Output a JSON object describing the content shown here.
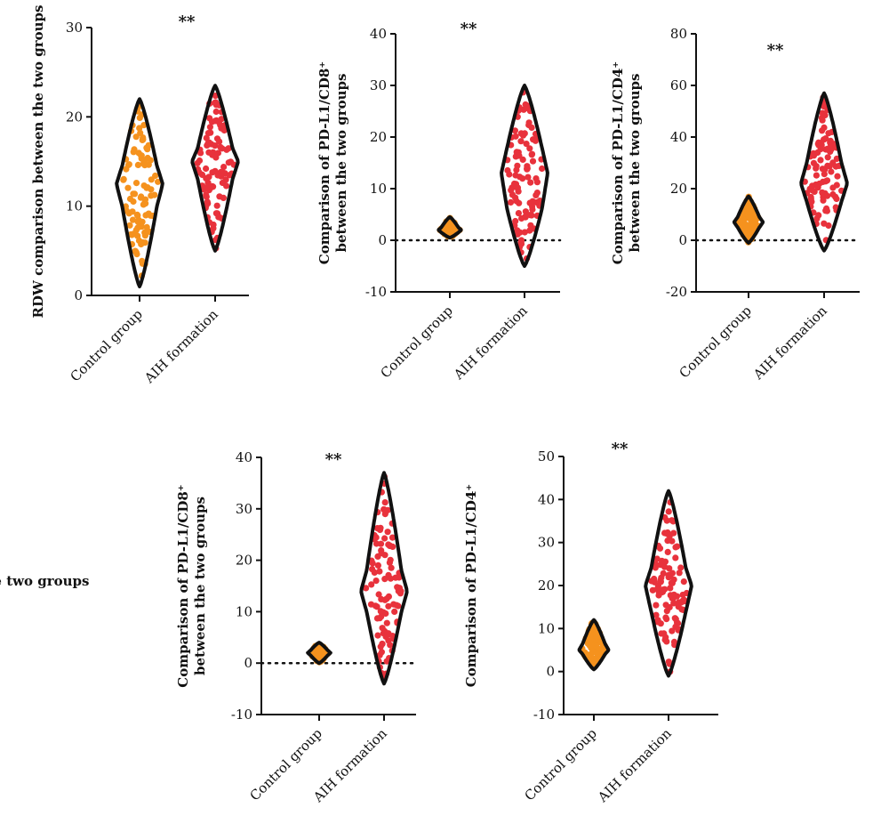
{
  "colors": {
    "control": "#F5921E",
    "aih": "#E8323C",
    "outline": "#111111",
    "axis": "#111111"
  },
  "chart_data": [
    {
      "type": "violin",
      "ylabel": [
        "RDW comparison between the two groups"
      ],
      "categories": [
        "Control group",
        "AIH formation"
      ],
      "ylim": [
        0,
        30
      ],
      "yticks": [
        0,
        10,
        20,
        30
      ],
      "zero_line": false,
      "significance": "**",
      "series": [
        {
          "category": "Control group",
          "min": 1,
          "max": 22,
          "median": 12.5,
          "q1": 10,
          "q3": 14.5,
          "n": 100
        },
        {
          "category": "AIH formation",
          "min": 5,
          "max": 23.5,
          "median": 15,
          "q1": 13,
          "q3": 16.5,
          "n": 100
        }
      ]
    },
    {
      "type": "violin",
      "ylabel": [
        "Comparison of PD-L1/CD8⁺",
        "between the two groups"
      ],
      "categories": [
        "Control group",
        "AIH formation"
      ],
      "ylim": [
        -10,
        40
      ],
      "yticks": [
        -10,
        0,
        10,
        20,
        30,
        40
      ],
      "zero_line": true,
      "significance": "**",
      "series": [
        {
          "category": "Control group",
          "min": 0.5,
          "max": 4.5,
          "median": 2,
          "q1": 1.5,
          "q3": 2.5,
          "n": 100
        },
        {
          "category": "AIH formation",
          "min": -5,
          "max": 30,
          "median": 13,
          "q1": 6,
          "q3": 18,
          "n": 100
        }
      ]
    },
    {
      "type": "violin",
      "ylabel": [
        "Comparison of PD-L1/CD4⁺",
        "between the two groups"
      ],
      "categories": [
        "Control group",
        "AIH formation"
      ],
      "ylim": [
        -20,
        80
      ],
      "yticks": [
        -20,
        0,
        20,
        40,
        60,
        80
      ],
      "zero_line": true,
      "significance": "**",
      "series": [
        {
          "category": "Control group",
          "min": -1,
          "max": 17,
          "median": 7,
          "q1": 5,
          "q3": 9,
          "n": 100
        },
        {
          "category": "AIH formation",
          "min": -4,
          "max": 57,
          "median": 22,
          "q1": 15,
          "q3": 30,
          "n": 100
        }
      ]
    },
    {
      "type": "violin",
      "ylabel": [
        "Comparison of PD-L1/CD8⁺",
        "between the two groups"
      ],
      "categories": [
        "Control group",
        "AIH formation"
      ],
      "ylim": [
        -10,
        40
      ],
      "yticks": [
        -10,
        0,
        10,
        20,
        30,
        40
      ],
      "zero_line": true,
      "significance": "**",
      "series": [
        {
          "category": "Control group",
          "min": 0,
          "max": 4,
          "median": 2,
          "q1": 1.5,
          "q3": 2.5,
          "n": 100
        },
        {
          "category": "AIH formation",
          "min": -4,
          "max": 37,
          "median": 14,
          "q1": 10,
          "q3": 18,
          "n": 100
        }
      ]
    },
    {
      "type": "violin",
      "ylabel": [
        "Comparison of PD-L1/CD4⁺",
        "between the two groups"
      ],
      "categories": [
        "Control group",
        "AIH formation"
      ],
      "ylim": [
        -10,
        50
      ],
      "yticks": [
        -10,
        0,
        10,
        20,
        30,
        40,
        50
      ],
      "zero_line": false,
      "significance": "**",
      "series": [
        {
          "category": "Control group",
          "min": 0.5,
          "max": 12,
          "median": 5,
          "q1": 4,
          "q3": 6.5,
          "n": 100
        },
        {
          "category": "AIH formation",
          "min": -1,
          "max": 42,
          "median": 20,
          "q1": 14,
          "q3": 24,
          "n": 100
        }
      ]
    }
  ]
}
